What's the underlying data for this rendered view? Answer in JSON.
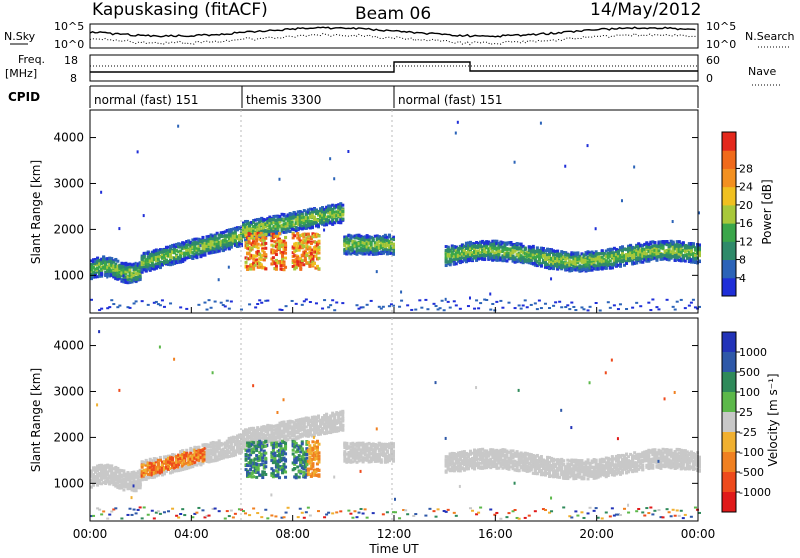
{
  "header": {
    "station": "Kapuskasing (fitACF)",
    "beam": "Beam 06",
    "date": "14/May/2012"
  },
  "status_panels": {
    "nsky_label": "N.Sky",
    "nsky_ticks": [
      "10^5",
      "10^0"
    ],
    "nsearch_label": "N.Search",
    "nsearch_ticks": [
      "10^5",
      "10^0"
    ],
    "freq_label_1": "Freq.",
    "freq_label_2": "[MHz]",
    "freq_ticks": [
      "18",
      "8"
    ],
    "nave_label": "Nave",
    "nave_ticks": [
      "60",
      "0"
    ],
    "cpid_label": "CPID",
    "cpid_modes": [
      {
        "label": "normal (fast) 151",
        "start_h": 0,
        "end_h": 6
      },
      {
        "label": "themis 3300",
        "start_h": 6,
        "end_h": 12
      },
      {
        "label": "normal (fast) 151",
        "start_h": 12,
        "end_h": 24
      }
    ]
  },
  "chart_data": [
    {
      "type": "heatmap",
      "name": "Power",
      "ylabel": "Slant Range [km]",
      "xlim": [
        0,
        24
      ],
      "ylim": [
        180,
        4600
      ],
      "yticks": [
        "1000",
        "2000",
        "3000",
        "4000"
      ],
      "ytick_values": [
        1000,
        2000,
        3000,
        4000
      ],
      "colorbar_label": "Power [dB]",
      "colorbar_ticks": [
        "4",
        "8",
        "12",
        "16",
        "20",
        "24",
        "28"
      ],
      "colorbar_values": [
        4,
        8,
        12,
        16,
        20,
        24,
        28
      ],
      "colorbar_colors": [
        "#1f2fd8",
        "#2b63b8",
        "#2f8a6a",
        "#3aa64a",
        "#a8c83a",
        "#f0c020",
        "#f39020",
        "#f06a1a",
        "#e4281c"
      ]
    },
    {
      "type": "heatmap",
      "name": "Velocity",
      "ylabel": "Slant Range [km]",
      "xlabel": "Time UT",
      "xlim": [
        0,
        24
      ],
      "ylim": [
        180,
        4600
      ],
      "yticks": [
        "1000",
        "2000",
        "3000",
        "4000"
      ],
      "ytick_values": [
        1000,
        2000,
        3000,
        4000
      ],
      "xticks": [
        "00:00",
        "04:00",
        "08:00",
        "12:00",
        "16:00",
        "20:00",
        "00:00"
      ],
      "xtick_values": [
        0,
        4,
        8,
        12,
        16,
        20,
        24
      ],
      "colorbar_label": "Velocity [m s⁻¹]",
      "colorbar_ticks": [
        "1000",
        "500",
        "100",
        "25",
        "-25",
        "-100",
        "-500",
        "-1000"
      ],
      "colorbar_colors": [
        "#2233b8",
        "#2e58a8",
        "#2f8a5a",
        "#5cb84a",
        "#c8c8c8",
        "#f0b030",
        "#f08020",
        "#ee4a1c",
        "#e01a1a"
      ]
    }
  ]
}
